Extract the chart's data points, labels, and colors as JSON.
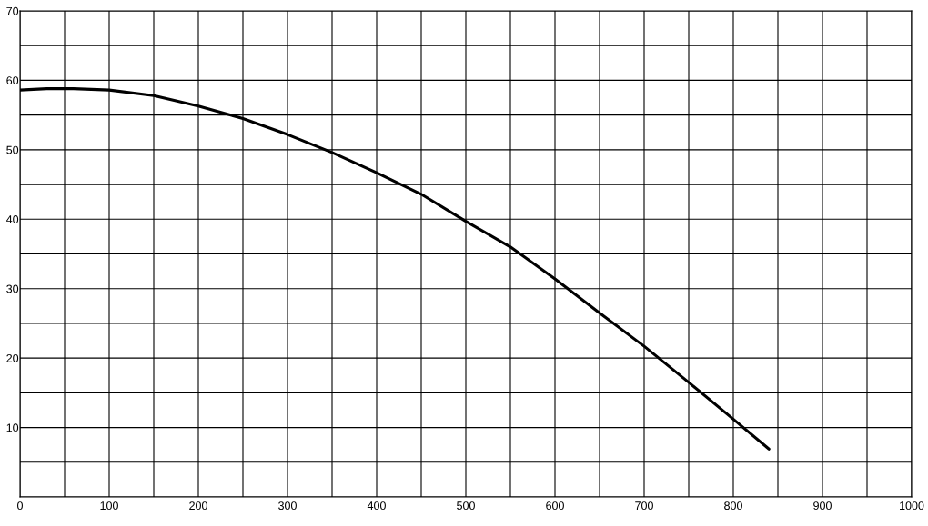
{
  "chart_data": {
    "type": "line",
    "series": [
      {
        "color": "#000000",
        "x": [
          0,
          30,
          60,
          100,
          150,
          200,
          250,
          300,
          350,
          400,
          450,
          500,
          550,
          600,
          650,
          700,
          750,
          800,
          840
        ],
        "values": [
          58.6,
          58.8,
          58.8,
          58.6,
          57.8,
          56.3,
          54.5,
          52.2,
          49.6,
          46.7,
          43.6,
          39.7,
          36.0,
          31.4,
          26.5,
          21.7,
          16.5,
          11.2,
          6.9
        ]
      }
    ],
    "xlim": [
      0,
      1000
    ],
    "ylim": [
      0,
      70
    ],
    "xticks": [
      0,
      {
        "value": 50,
        "label": null
      },
      100,
      {
        "value": 150,
        "label": null
      },
      200,
      {
        "value": 250,
        "label": null
      },
      300,
      {
        "value": 350,
        "label": null
      },
      400,
      {
        "value": 450,
        "label": null
      },
      500,
      {
        "value": 550,
        "label": null
      },
      600,
      {
        "value": 650,
        "label": null
      },
      700,
      {
        "value": 750,
        "label": null
      },
      800,
      {
        "value": 850,
        "label": null
      },
      900,
      {
        "value": 950,
        "label": null
      },
      1000
    ],
    "yticks": [
      {
        "value": 0,
        "label": null
      },
      {
        "value": 5,
        "label": null
      },
      10,
      {
        "value": 15,
        "label": null
      },
      20,
      {
        "value": 25,
        "label": null
      },
      30,
      {
        "value": 35,
        "label": null
      },
      40,
      {
        "value": 45,
        "label": null
      },
      50,
      {
        "value": 55,
        "label": null
      },
      60,
      {
        "value": 65,
        "label": null
      },
      70
    ],
    "grid": true,
    "marker": "none",
    "line_style": "solid",
    "legend": false
  }
}
